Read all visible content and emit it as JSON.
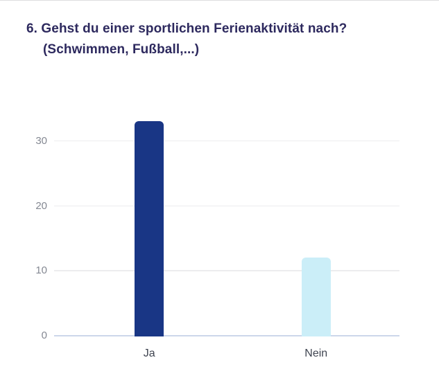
{
  "header": {
    "title_line1": "6. Gehst du einer sportlichen Ferienaktivität nach?",
    "title_line2": "(Schwimmen, Fußball,...)"
  },
  "chart_data": {
    "type": "bar",
    "title": "6. Gehst du einer sportlichen Ferienaktivität nach? (Schwimmen, Fußball,...)",
    "categories": [
      "Ja",
      "Nein"
    ],
    "values": [
      33,
      12
    ],
    "bar_colors": [
      "#193685",
      "#cbeef8"
    ],
    "xlabel": "",
    "ylabel": "",
    "yticks": [
      0,
      10,
      20,
      30
    ],
    "ylim": [
      0,
      34.5
    ],
    "grid": true,
    "legend": false
  },
  "colors": {
    "background": "#ffffff",
    "title_text": "#2d295e",
    "tick_label_text": "#848892",
    "x_axis_label_text": "#3f4450",
    "gridline": "#ececee",
    "baseline": "#ccd6ea"
  }
}
